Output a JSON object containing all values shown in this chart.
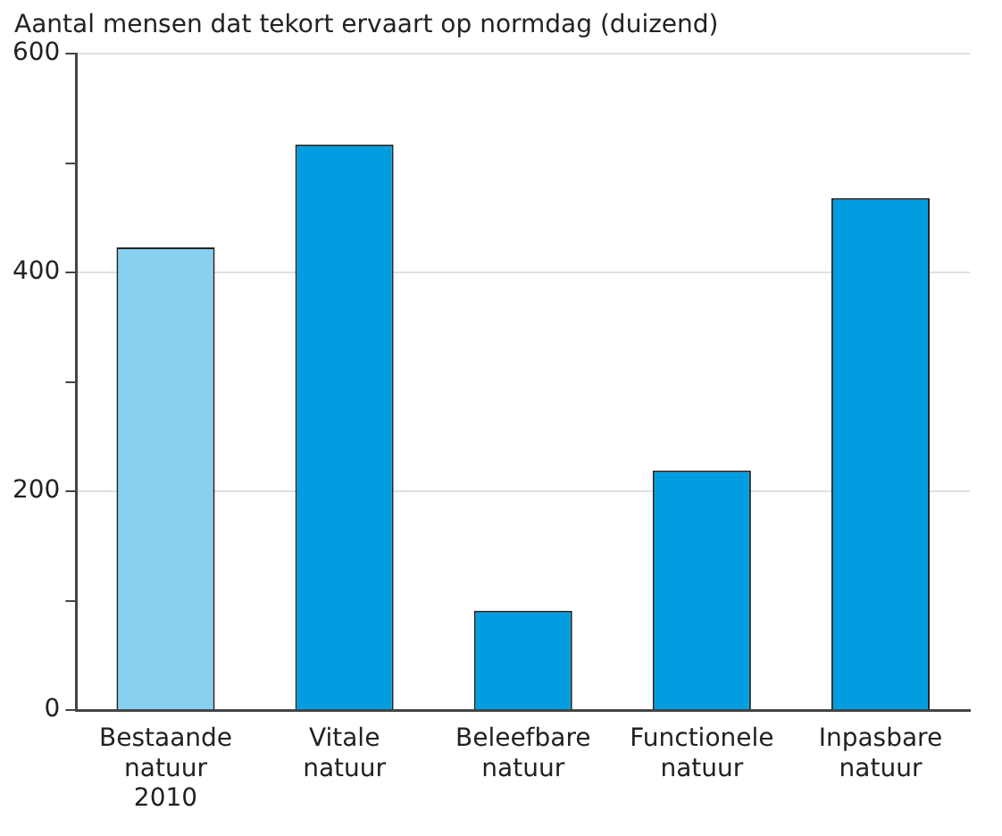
{
  "chart_data": {
    "type": "bar",
    "title": "Aantal mensen dat tekort ervaart op normdag (duizend)",
    "categories": [
      "Bestaande natuur 2010",
      "Vitale natuur",
      "Beleefbare natuur",
      "Functionele natuur",
      "Inpasbare natuur"
    ],
    "values": [
      423,
      517,
      91,
      219,
      468
    ],
    "colors": [
      "#87d0f0",
      "#009ee0",
      "#009ee0",
      "#009ee0",
      "#009ee0"
    ],
    "ylim": [
      0,
      600
    ],
    "yticks": [
      0,
      {
        "value": 100,
        "label": null
      },
      200,
      {
        "value": 300,
        "label": null
      },
      400,
      {
        "value": 500,
        "label": null
      },
      600
    ],
    "grid": "y",
    "legend": false
  }
}
